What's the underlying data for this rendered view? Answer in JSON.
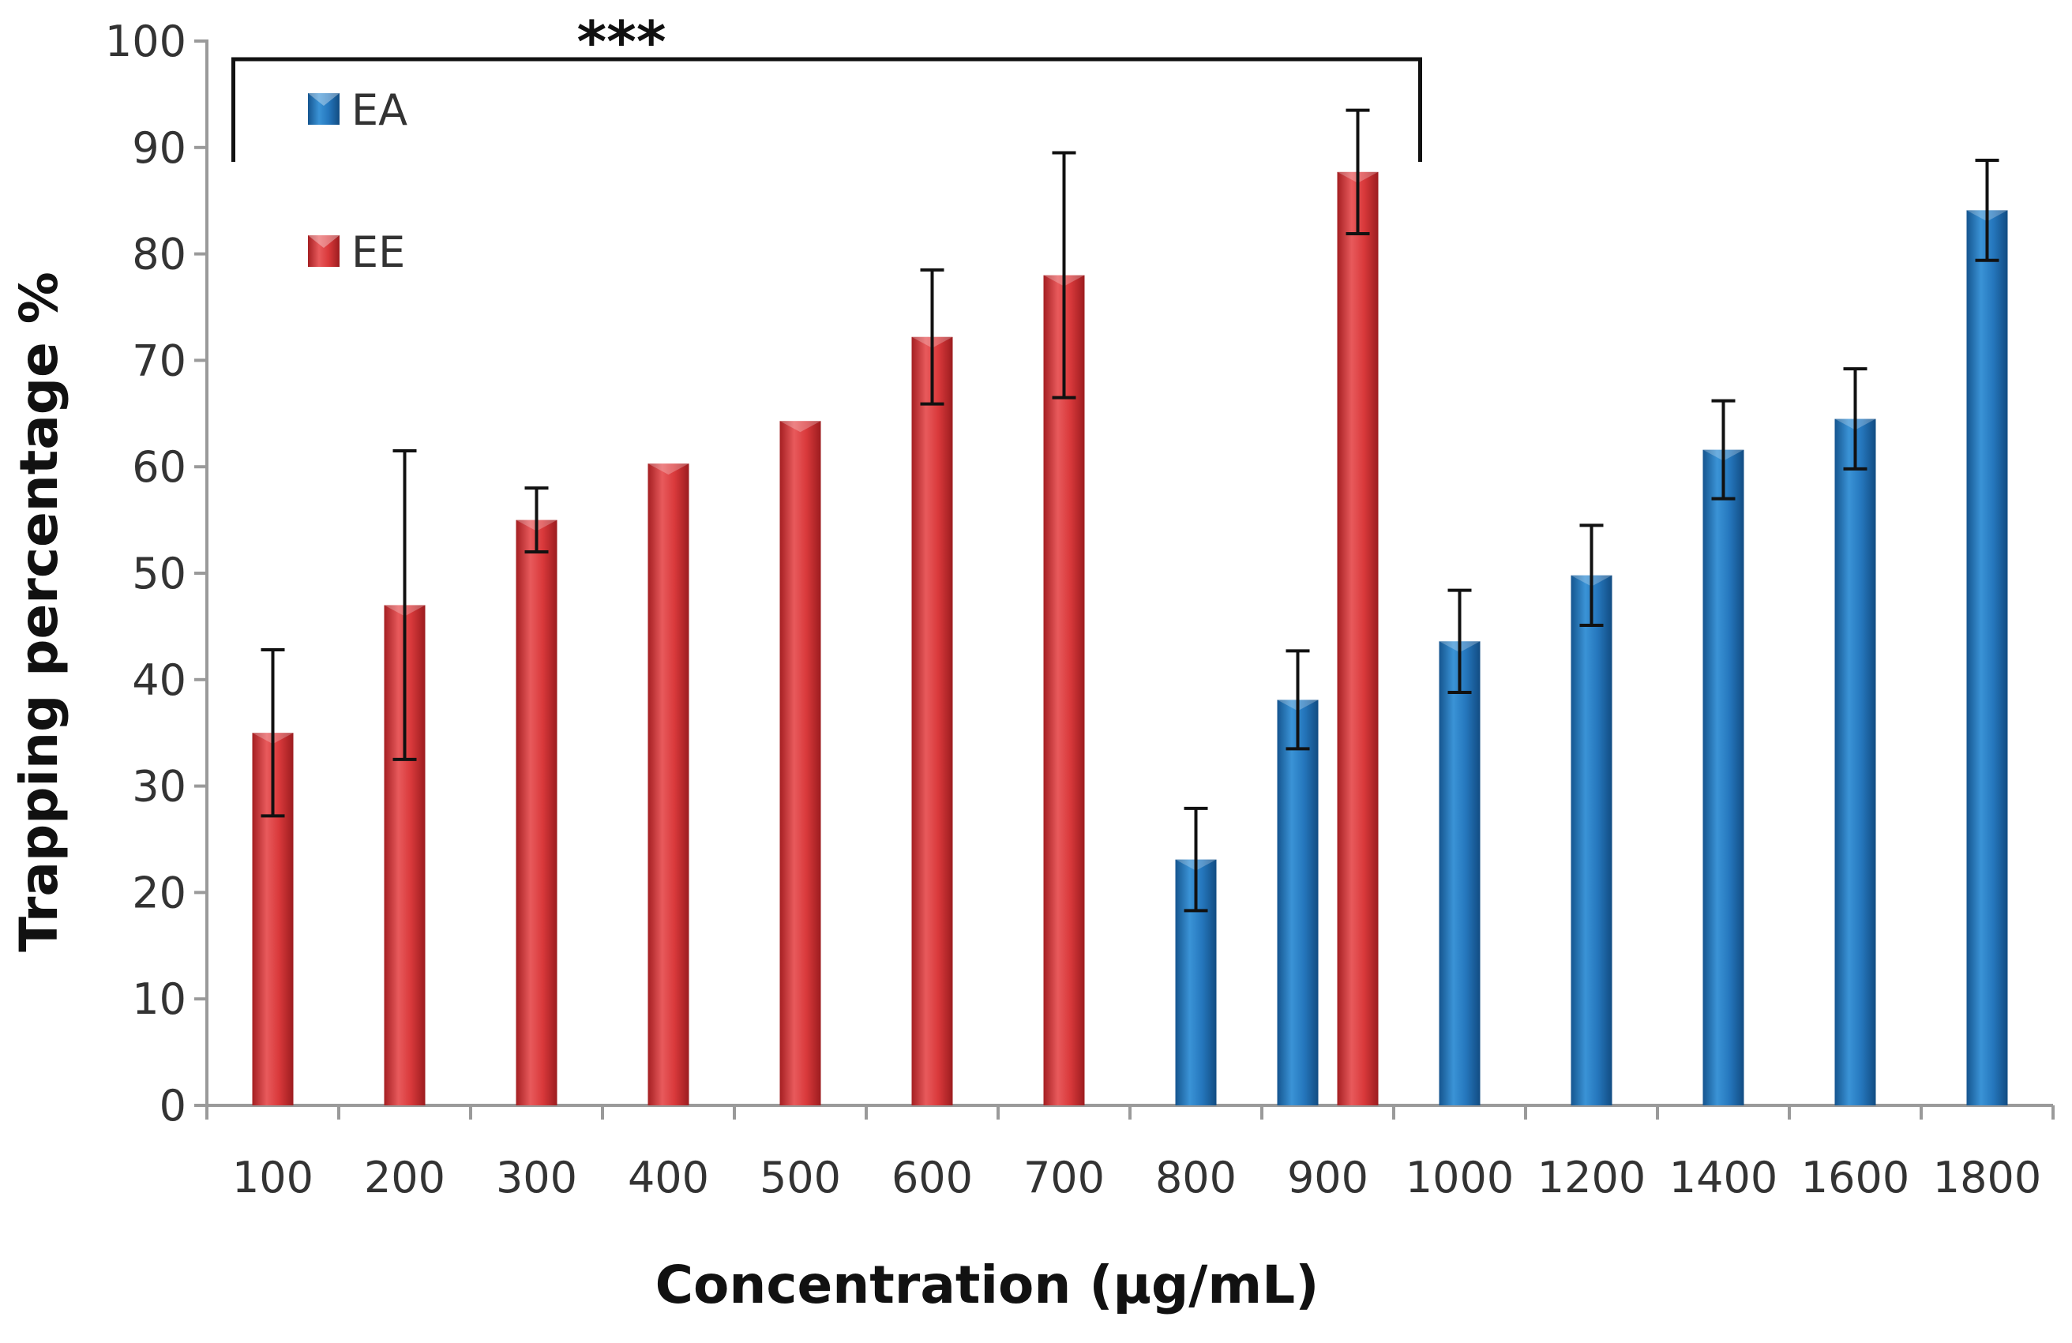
{
  "chart_data": {
    "type": "bar",
    "xlabel": "Concentration (µg/mL)",
    "ylabel": "Trapping  percentage %",
    "ylim": [
      0,
      100
    ],
    "yticks": [
      0,
      10,
      20,
      30,
      40,
      50,
      60,
      70,
      80,
      90,
      100
    ],
    "categories": [
      "100",
      "200",
      "300",
      "400",
      "500",
      "600",
      "700",
      "800",
      "900",
      "1000",
      "1200",
      "1400",
      "1600",
      "1800"
    ],
    "legend_position": "top-left",
    "significance": {
      "label": "***",
      "from": "100",
      "to": "1000"
    },
    "series": [
      {
        "name": "EE",
        "color": "#d9393b",
        "values": [
          35,
          47,
          55,
          60.3,
          64.3,
          72.2,
          78,
          null,
          87.7,
          null,
          null,
          null,
          null,
          null
        ],
        "errors": [
          7.8,
          14.5,
          3,
          null,
          null,
          6.3,
          11.5,
          null,
          5.8,
          null,
          null,
          null,
          null,
          null
        ]
      },
      {
        "name": "EA",
        "color": "#2577bd",
        "values": [
          null,
          null,
          null,
          null,
          null,
          null,
          null,
          23.1,
          38.1,
          43.6,
          49.8,
          61.6,
          64.5,
          84.1
        ],
        "errors": [
          null,
          null,
          null,
          null,
          null,
          null,
          null,
          4.8,
          4.6,
          4.8,
          4.7,
          4.6,
          4.7,
          4.7
        ]
      }
    ]
  }
}
